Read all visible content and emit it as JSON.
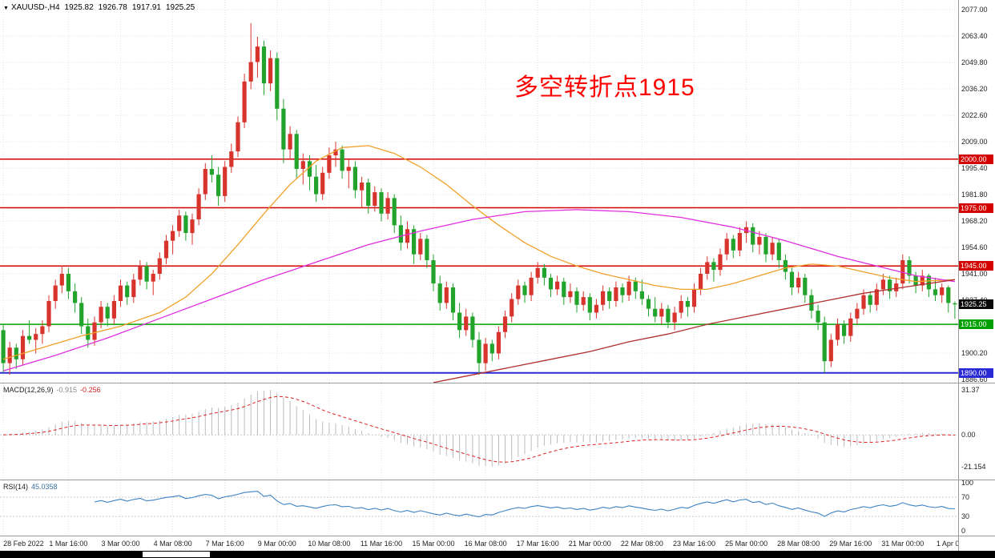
{
  "window": {
    "dropdown_icon": "▼",
    "symbol": "XAUUSD-,H4",
    "ohlc": {
      "open": "1925.82",
      "high": "1926.78",
      "low": "1917.91",
      "close": "1925.25"
    }
  },
  "annotation": {
    "text": "多空转折点1915",
    "color": "#fe0000"
  },
  "panels": {
    "macd": {
      "name": "MACD(12,26,9)",
      "macd_value": "-0.915",
      "signal_value": "-0.256",
      "ticks": [
        "31.37",
        "0.00",
        "-21.154"
      ]
    },
    "rsi": {
      "name": "RSI(14)",
      "value": "45.0358",
      "ticks": [
        "100",
        "70",
        "30",
        "0"
      ],
      "levels": [
        70,
        30
      ]
    }
  },
  "current_price": {
    "text": "1925.25",
    "value": 1925.25,
    "bg": "#0a0a0a"
  },
  "time_axis": {
    "labels": [
      {
        "bar": 0,
        "text": "28 Feb 2022"
      },
      {
        "bar": 10,
        "text": "1 Mar 16:00"
      },
      {
        "bar": 18,
        "text": "3 Mar 00:00"
      },
      {
        "bar": 26,
        "text": "4 Mar 08:00"
      },
      {
        "bar": 34,
        "text": "7 Mar 16:00"
      },
      {
        "bar": 42,
        "text": "9 Mar 00:00"
      },
      {
        "bar": 50,
        "text": "10 Mar 08:00"
      },
      {
        "bar": 58,
        "text": "11 Mar 16:00"
      },
      {
        "bar": 66,
        "text": "15 Mar 00:00"
      },
      {
        "bar": 74,
        "text": "16 Mar 08:00"
      },
      {
        "bar": 82,
        "text": "17 Mar 16:00"
      },
      {
        "bar": 90,
        "text": "21 Mar 00:00"
      },
      {
        "bar": 98,
        "text": "22 Mar 08:00"
      },
      {
        "bar": 106,
        "text": "23 Mar 16:00"
      },
      {
        "bar": 114,
        "text": "25 Mar 00:00"
      },
      {
        "bar": 122,
        "text": "28 Mar 08:00"
      },
      {
        "bar": 130,
        "text": "29 Mar 16:00"
      },
      {
        "bar": 138,
        "text": "31 Mar 00:00"
      },
      {
        "bar": 146,
        "text": "1 Apr 08:00"
      }
    ]
  },
  "chart_data": {
    "type": "candlestick",
    "symbol": "XAUUSD",
    "timeframe": "H4",
    "title": "XAUUSD-,H4",
    "y_axis": {
      "ticks": [
        "2077.00",
        "2063.40",
        "2049.80",
        "2036.20",
        "2022.60",
        "2009.00",
        "1995.40",
        "1981.80",
        "1968.20",
        "1954.60",
        "1941.00",
        "1927.40",
        "1913.80",
        "1900.20",
        "1886.60"
      ]
    },
    "colors": {
      "up": "#d8342e",
      "down": "#22a32c",
      "grid": "#e3e3e3",
      "macd_hist": "#bcbcbc",
      "macd_signal": "#dd2222",
      "rsi_line": "#3b82c4"
    },
    "hlines": [
      {
        "price": 2000,
        "label": "2000.00",
        "color": "#d40000"
      },
      {
        "price": 1975,
        "label": "1975.00",
        "color": "#d40000"
      },
      {
        "price": 1945,
        "label": "1945.00",
        "color": "#d40000"
      },
      {
        "price": 1915,
        "label": "1915.00",
        "color": "#00a000"
      },
      {
        "price": 1890,
        "label": "1890.00",
        "color": "#2929d6"
      }
    ],
    "indicators": {
      "macd": {
        "fast": 12,
        "slow": 26,
        "signal": 9
      },
      "rsi": {
        "period": 14
      }
    },
    "overlays": [
      {
        "name": "ma-fast",
        "color": "#f0a028",
        "points": [
          [
            0,
            1897
          ],
          [
            6,
            1903
          ],
          [
            12,
            1909
          ],
          [
            18,
            1914
          ],
          [
            24,
            1921
          ],
          [
            28,
            1929
          ],
          [
            32,
            1941
          ],
          [
            36,
            1956
          ],
          [
            40,
            1972
          ],
          [
            44,
            1987
          ],
          [
            48,
            1999
          ],
          [
            52,
            2006
          ],
          [
            56,
            2007
          ],
          [
            60,
            2003
          ],
          [
            64,
            1996
          ],
          [
            68,
            1987
          ],
          [
            72,
            1976
          ],
          [
            76,
            1966
          ],
          [
            80,
            1957
          ],
          [
            84,
            1950
          ],
          [
            88,
            1945
          ],
          [
            92,
            1941
          ],
          [
            96,
            1938
          ],
          [
            100,
            1935
          ],
          [
            104,
            1933
          ],
          [
            108,
            1933
          ],
          [
            112,
            1936
          ],
          [
            116,
            1940
          ],
          [
            120,
            1944
          ],
          [
            124,
            1946
          ],
          [
            128,
            1945
          ],
          [
            132,
            1942
          ],
          [
            136,
            1939
          ],
          [
            140,
            1937
          ],
          [
            146,
            1938
          ]
        ]
      },
      {
        "name": "ma-mid",
        "color": "#e02ee0",
        "points": [
          [
            0,
            1891
          ],
          [
            8,
            1899
          ],
          [
            16,
            1908
          ],
          [
            24,
            1918
          ],
          [
            32,
            1928
          ],
          [
            40,
            1938
          ],
          [
            48,
            1947
          ],
          [
            56,
            1956
          ],
          [
            64,
            1963
          ],
          [
            72,
            1969
          ],
          [
            80,
            1973
          ],
          [
            88,
            1974
          ],
          [
            96,
            1973
          ],
          [
            104,
            1970
          ],
          [
            112,
            1965
          ],
          [
            120,
            1958
          ],
          [
            128,
            1950
          ],
          [
            134,
            1945
          ],
          [
            140,
            1940
          ],
          [
            146,
            1937
          ]
        ]
      },
      {
        "name": "ma-slow",
        "color": "#b03030",
        "points": [
          [
            66,
            1885
          ],
          [
            72,
            1889
          ],
          [
            78,
            1893
          ],
          [
            84,
            1897
          ],
          [
            90,
            1901
          ],
          [
            96,
            1906
          ],
          [
            102,
            1910
          ],
          [
            108,
            1915
          ],
          [
            114,
            1919
          ],
          [
            120,
            1923
          ],
          [
            126,
            1927
          ],
          [
            132,
            1931
          ],
          [
            138,
            1934
          ],
          [
            146,
            1938
          ]
        ]
      }
    ],
    "ohlc": [
      [
        1912,
        1915,
        1890,
        1895
      ],
      [
        1895,
        1906,
        1889,
        1903
      ],
      [
        1903,
        1905,
        1892,
        1897
      ],
      [
        1897,
        1912,
        1894,
        1909
      ],
      [
        1909,
        1917,
        1905,
        1907
      ],
      [
        1907,
        1913,
        1900,
        1910
      ],
      [
        1910,
        1917,
        1905,
        1914
      ],
      [
        1914,
        1930,
        1911,
        1927
      ],
      [
        1927,
        1938,
        1923,
        1935
      ],
      [
        1935,
        1945,
        1931,
        1941
      ],
      [
        1941,
        1944,
        1928,
        1932
      ],
      [
        1932,
        1936,
        1921,
        1926
      ],
      [
        1926,
        1929,
        1910,
        1914
      ],
      [
        1914,
        1918,
        1903,
        1907
      ],
      [
        1907,
        1919,
        1904,
        1916
      ],
      [
        1916,
        1927,
        1913,
        1924
      ],
      [
        1924,
        1926,
        1914,
        1918
      ],
      [
        1918,
        1930,
        1915,
        1927
      ],
      [
        1927,
        1938,
        1924,
        1935
      ],
      [
        1935,
        1937,
        1925,
        1929
      ],
      [
        1929,
        1941,
        1926,
        1938
      ],
      [
        1938,
        1948,
        1935,
        1945
      ],
      [
        1945,
        1947,
        1933,
        1937
      ],
      [
        1937,
        1943,
        1930,
        1941
      ],
      [
        1941,
        1952,
        1938,
        1949
      ],
      [
        1949,
        1961,
        1946,
        1958
      ],
      [
        1958,
        1966,
        1951,
        1963
      ],
      [
        1963,
        1974,
        1960,
        1971
      ],
      [
        1971,
        1973,
        1958,
        1962
      ],
      [
        1962,
        1972,
        1956,
        1969
      ],
      [
        1969,
        1985,
        1966,
        1982
      ],
      [
        1982,
        1998,
        1979,
        1995
      ],
      [
        1995,
        2002,
        1988,
        1992
      ],
      [
        1992,
        1996,
        1976,
        1981
      ],
      [
        1981,
        1999,
        1978,
        1996
      ],
      [
        1996,
        2008,
        1993,
        2004
      ],
      [
        2004,
        2022,
        2001,
        2019
      ],
      [
        2019,
        2044,
        2016,
        2040
      ],
      [
        2040,
        2070,
        2036,
        2050
      ],
      [
        2050,
        2063,
        2042,
        2058
      ],
      [
        2058,
        2061,
        2033,
        2039
      ],
      [
        2039,
        2056,
        2035,
        2052
      ],
      [
        2052,
        2055,
        2020,
        2026
      ],
      [
        2026,
        2031,
        1998,
        2005
      ],
      [
        2005,
        2017,
        2000,
        2013
      ],
      [
        2013,
        2015,
        1990,
        1995
      ],
      [
        1995,
        2003,
        1987,
        1999
      ],
      [
        1999,
        2002,
        1984,
        1991
      ],
      [
        1991,
        1997,
        1978,
        1982
      ],
      [
        1982,
        1996,
        1979,
        1993
      ],
      [
        1993,
        2006,
        1990,
        2002
      ],
      [
        2002,
        2009,
        1996,
        2005
      ],
      [
        2005,
        2007,
        1990,
        1994
      ],
      [
        1994,
        2000,
        1985,
        1996
      ],
      [
        1996,
        1999,
        1980,
        1984
      ],
      [
        1984,
        1991,
        1975,
        1988
      ],
      [
        1988,
        1990,
        1972,
        1976
      ],
      [
        1976,
        1986,
        1973,
        1983
      ],
      [
        1983,
        1985,
        1968,
        1972
      ],
      [
        1972,
        1983,
        1969,
        1980
      ],
      [
        1980,
        1982,
        1962,
        1966
      ],
      [
        1966,
        1971,
        1953,
        1957
      ],
      [
        1957,
        1968,
        1954,
        1964
      ],
      [
        1964,
        1966,
        1946,
        1951
      ],
      [
        1951,
        1962,
        1948,
        1959
      ],
      [
        1959,
        1961,
        1944,
        1948
      ],
      [
        1948,
        1951,
        1932,
        1936
      ],
      [
        1936,
        1940,
        1922,
        1926
      ],
      [
        1926,
        1937,
        1923,
        1934
      ],
      [
        1934,
        1936,
        1917,
        1921
      ],
      [
        1921,
        1926,
        1908,
        1912
      ],
      [
        1912,
        1923,
        1909,
        1919
      ],
      [
        1919,
        1921,
        1903,
        1907
      ],
      [
        1907,
        1911,
        1889,
        1895
      ],
      [
        1895,
        1908,
        1891,
        1905
      ],
      [
        1905,
        1907,
        1896,
        1900
      ],
      [
        1900,
        1914,
        1897,
        1911
      ],
      [
        1911,
        1922,
        1908,
        1919
      ],
      [
        1919,
        1931,
        1916,
        1928
      ],
      [
        1928,
        1938,
        1925,
        1935
      ],
      [
        1935,
        1937,
        1926,
        1930
      ],
      [
        1930,
        1942,
        1927,
        1939
      ],
      [
        1939,
        1947,
        1936,
        1944
      ],
      [
        1944,
        1946,
        1935,
        1939
      ],
      [
        1939,
        1941,
        1929,
        1933
      ],
      [
        1933,
        1940,
        1930,
        1937
      ],
      [
        1937,
        1939,
        1925,
        1929
      ],
      [
        1929,
        1936,
        1926,
        1932
      ],
      [
        1932,
        1934,
        1921,
        1925
      ],
      [
        1925,
        1932,
        1922,
        1929
      ],
      [
        1929,
        1931,
        1917,
        1921
      ],
      [
        1921,
        1928,
        1918,
        1925
      ],
      [
        1925,
        1935,
        1922,
        1932
      ],
      [
        1932,
        1934,
        1923,
        1927
      ],
      [
        1927,
        1937,
        1924,
        1934
      ],
      [
        1934,
        1936,
        1926,
        1930
      ],
      [
        1930,
        1940,
        1927,
        1937
      ],
      [
        1937,
        1939,
        1928,
        1932
      ],
      [
        1932,
        1938,
        1925,
        1928
      ],
      [
        1928,
        1930,
        1919,
        1923
      ],
      [
        1923,
        1929,
        1916,
        1919
      ],
      [
        1919,
        1926,
        1915,
        1923
      ],
      [
        1923,
        1925,
        1913,
        1916
      ],
      [
        1916,
        1924,
        1912,
        1921
      ],
      [
        1921,
        1930,
        1918,
        1927
      ],
      [
        1927,
        1929,
        1919,
        1924
      ],
      [
        1924,
        1936,
        1921,
        1933
      ],
      [
        1933,
        1944,
        1930,
        1941
      ],
      [
        1941,
        1950,
        1938,
        1947
      ],
      [
        1947,
        1949,
        1937,
        1943
      ],
      [
        1943,
        1954,
        1940,
        1951
      ],
      [
        1951,
        1962,
        1948,
        1959
      ],
      [
        1959,
        1961,
        1949,
        1953
      ],
      [
        1953,
        1965,
        1950,
        1962
      ],
      [
        1962,
        1968,
        1957,
        1965
      ],
      [
        1965,
        1967,
        1952,
        1956
      ],
      [
        1956,
        1963,
        1951,
        1960
      ],
      [
        1960,
        1962,
        1947,
        1951
      ],
      [
        1951,
        1960,
        1948,
        1957
      ],
      [
        1957,
        1959,
        1944,
        1948
      ],
      [
        1948,
        1951,
        1938,
        1942
      ],
      [
        1942,
        1944,
        1930,
        1934
      ],
      [
        1934,
        1942,
        1931,
        1939
      ],
      [
        1939,
        1941,
        1926,
        1930
      ],
      [
        1930,
        1933,
        1918,
        1922
      ],
      [
        1922,
        1925,
        1912,
        1916
      ],
      [
        1916,
        1919,
        1890,
        1896
      ],
      [
        1896,
        1910,
        1893,
        1907
      ],
      [
        1907,
        1918,
        1904,
        1915
      ],
      [
        1915,
        1917,
        1905,
        1909
      ],
      [
        1909,
        1921,
        1906,
        1918
      ],
      [
        1918,
        1926,
        1915,
        1923
      ],
      [
        1923,
        1933,
        1920,
        1930
      ],
      [
        1930,
        1932,
        1921,
        1925
      ],
      [
        1925,
        1936,
        1922,
        1933
      ],
      [
        1933,
        1941,
        1930,
        1938
      ],
      [
        1938,
        1940,
        1928,
        1932
      ],
      [
        1932,
        1939,
        1929,
        1936
      ],
      [
        1936,
        1951,
        1933,
        1948
      ],
      [
        1948,
        1950,
        1936,
        1940
      ],
      [
        1940,
        1942,
        1931,
        1935
      ],
      [
        1935,
        1943,
        1932,
        1940
      ],
      [
        1940,
        1941,
        1929,
        1933
      ],
      [
        1933,
        1939,
        1927,
        1930
      ],
      [
        1930,
        1936,
        1926,
        1934
      ],
      [
        1934,
        1935,
        1921,
        1926
      ],
      [
        1925.82,
        1926.78,
        1917.91,
        1925.25
      ]
    ]
  }
}
